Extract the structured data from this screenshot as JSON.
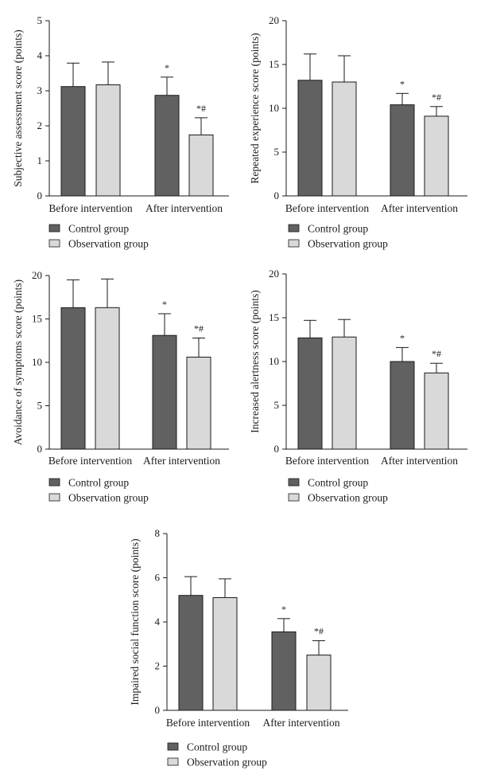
{
  "colors": {
    "control": "#616161",
    "observation": "#d9d9d9",
    "stroke": "#1a1a1a"
  },
  "legend": {
    "control": "Control group",
    "observation": "Observation group"
  },
  "chart_data": [
    {
      "type": "bar",
      "ylabel": "Subjective assessment score (points)",
      "categories": [
        "Before intervention",
        "After intervention"
      ],
      "ylim": [
        0,
        5
      ],
      "yticks": [
        0,
        1,
        2,
        3,
        4,
        5
      ],
      "series": [
        {
          "name": "Control group",
          "values": [
            3.12,
            2.87
          ],
          "errors": [
            0.67,
            0.52
          ],
          "annotations": [
            "",
            "*"
          ]
        },
        {
          "name": "Observation group",
          "values": [
            3.17,
            1.74
          ],
          "errors": [
            0.65,
            0.49
          ],
          "annotations": [
            "",
            "*#"
          ]
        }
      ]
    },
    {
      "type": "bar",
      "ylabel": "Repeated experience score (points)",
      "categories": [
        "Before intervention",
        "After intervention"
      ],
      "ylim": [
        0,
        20
      ],
      "yticks": [
        0,
        5,
        10,
        15,
        20
      ],
      "series": [
        {
          "name": "Control group",
          "values": [
            13.2,
            10.4
          ],
          "errors": [
            3.0,
            1.3
          ],
          "annotations": [
            "",
            "*"
          ]
        },
        {
          "name": "Observation group",
          "values": [
            13.0,
            9.1
          ],
          "errors": [
            3.0,
            1.1
          ],
          "annotations": [
            "",
            "*#"
          ]
        }
      ]
    },
    {
      "type": "bar",
      "ylabel": "Avoidance of symptoms score (points)",
      "categories": [
        "Before intervention",
        "After intervention"
      ],
      "ylim": [
        0,
        20
      ],
      "yticks": [
        0,
        5,
        10,
        15,
        20
      ],
      "series": [
        {
          "name": "Control group",
          "values": [
            16.3,
            13.1
          ],
          "errors": [
            3.2,
            2.5
          ],
          "annotations": [
            "",
            "*"
          ]
        },
        {
          "name": "Observation group",
          "values": [
            16.3,
            10.6
          ],
          "errors": [
            3.3,
            2.2
          ],
          "annotations": [
            "",
            "*#"
          ]
        }
      ]
    },
    {
      "type": "bar",
      "ylabel": "Increased alertness score (points)",
      "categories": [
        "Before intervention",
        "After intervention"
      ],
      "ylim": [
        0,
        20
      ],
      "yticks": [
        0,
        5,
        10,
        15,
        20
      ],
      "series": [
        {
          "name": "Control group",
          "values": [
            12.7,
            10.0
          ],
          "errors": [
            2.0,
            1.6
          ],
          "annotations": [
            "",
            "*"
          ]
        },
        {
          "name": "Observation group",
          "values": [
            12.8,
            8.7
          ],
          "errors": [
            2.0,
            1.1
          ],
          "annotations": [
            "",
            "*#"
          ]
        }
      ]
    },
    {
      "type": "bar",
      "ylabel": "Impaired social function score (points)",
      "categories": [
        "Before intervention",
        "After intervention"
      ],
      "ylim": [
        0,
        8
      ],
      "yticks": [
        0,
        2,
        4,
        6,
        8
      ],
      "series": [
        {
          "name": "Control group",
          "values": [
            5.2,
            3.55
          ],
          "errors": [
            0.85,
            0.6
          ],
          "annotations": [
            "",
            "*"
          ]
        },
        {
          "name": "Observation group",
          "values": [
            5.1,
            2.5
          ],
          "errors": [
            0.85,
            0.65
          ],
          "annotations": [
            "",
            "*#"
          ]
        }
      ]
    }
  ]
}
